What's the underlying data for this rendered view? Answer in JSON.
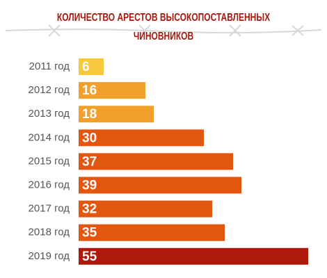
{
  "chart_data": {
    "type": "barh",
    "title": "КОЛИЧЕСТВО АРЕСТОВ ВЫСОКОПОСТАВЛЕННЫХ ЧИНОВНИКОВ",
    "categories": [
      "2011 год",
      "2012 год",
      "2013 год",
      "2014 год",
      "2015 год",
      "2016 год",
      "2017 год",
      "2018 год",
      "2019 год"
    ],
    "values": [
      6,
      16,
      18,
      30,
      37,
      39,
      32,
      35,
      55
    ],
    "colors": [
      "#f6c83c",
      "#f2a02c",
      "#f2a02c",
      "#e2560f",
      "#e2560f",
      "#e2560f",
      "#e2560f",
      "#e2560f",
      "#ad1a0b"
    ],
    "value_label_color": "#ffffff"
  }
}
